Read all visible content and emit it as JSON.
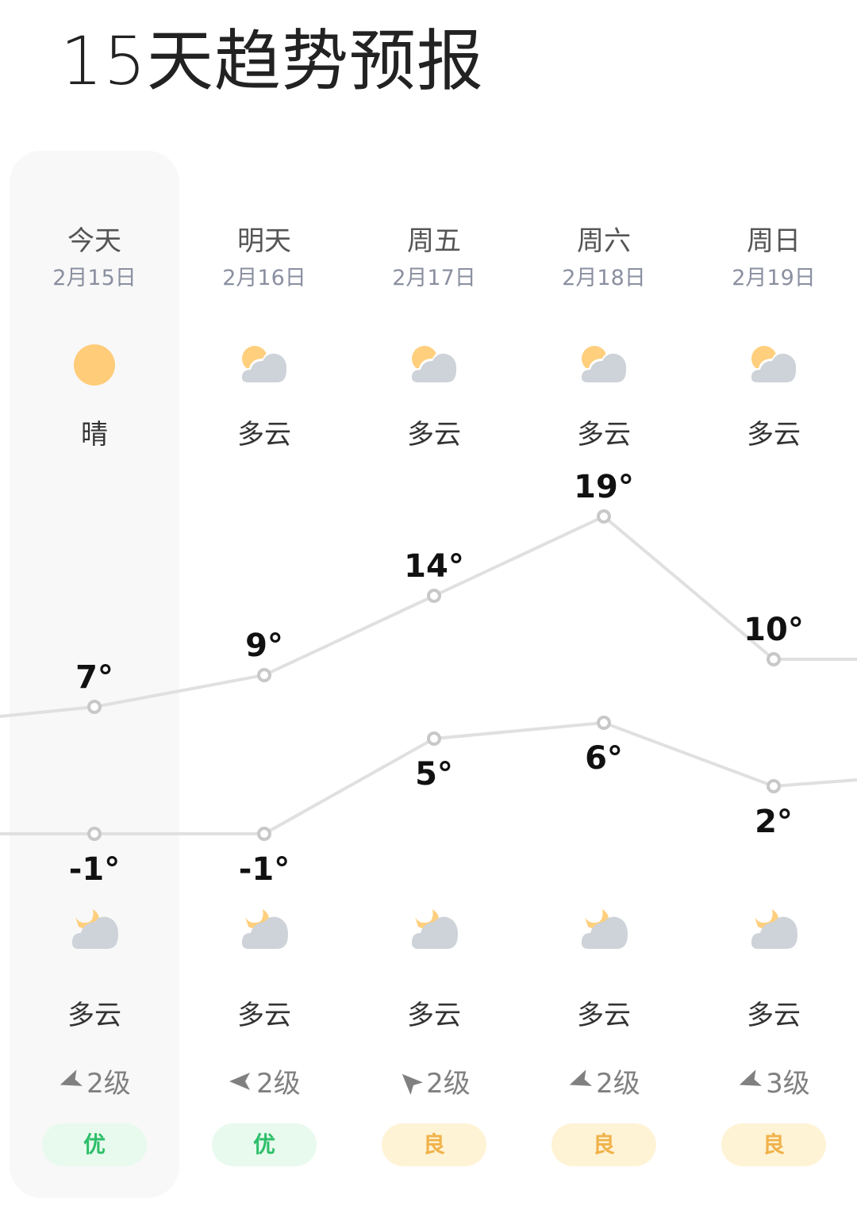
{
  "title": "15天趋势预报",
  "colors": {
    "line": "#e0e0e0",
    "point": "#c8c8c8",
    "aqi_good_bg": "#e8faee",
    "aqi_good_fg": "#2dbf6a",
    "aqi_ok_bg": "#fff3d6",
    "aqi_ok_fg": "#f0b24a",
    "today_bg": "#f8f8f8"
  },
  "days": [
    {
      "day": "今天",
      "date": "2月15日",
      "day_icon": "sun-icon",
      "day_cond": "晴",
      "high": 7,
      "high_label": "7°",
      "low": -1,
      "low_label": "-1°",
      "night_icon": "moon-cloud-icon",
      "night_cond": "多云",
      "wind": "2级",
      "wind_dir": -20,
      "aqi": "优",
      "aqi_level": "good"
    },
    {
      "day": "明天",
      "date": "2月16日",
      "day_icon": "sun-cloud-icon",
      "day_cond": "多云",
      "high": 9,
      "high_label": "9°",
      "low": -1,
      "low_label": "-1°",
      "night_icon": "moon-cloud-icon",
      "night_cond": "多云",
      "wind": "2级",
      "wind_dir": 0,
      "aqi": "优",
      "aqi_level": "good"
    },
    {
      "day": "周五",
      "date": "2月17日",
      "day_icon": "sun-cloud-icon",
      "day_cond": "多云",
      "high": 14,
      "high_label": "14°",
      "low": 5,
      "low_label": "5°",
      "night_icon": "moon-cloud-icon",
      "night_cond": "多云",
      "wind": "2级",
      "wind_dir": 45,
      "aqi": "良",
      "aqi_level": "ok"
    },
    {
      "day": "周六",
      "date": "2月18日",
      "day_icon": "sun-cloud-icon",
      "day_cond": "多云",
      "high": 19,
      "high_label": "19°",
      "low": 6,
      "low_label": "6°",
      "night_icon": "moon-cloud-icon",
      "night_cond": "多云",
      "wind": "2级",
      "wind_dir": -20,
      "aqi": "良",
      "aqi_level": "ok"
    },
    {
      "day": "周日",
      "date": "2月19日",
      "day_icon": "sun-cloud-icon",
      "day_cond": "多云",
      "high": 10,
      "high_label": "10°",
      "low": 2,
      "low_label": "2°",
      "night_icon": "moon-cloud-icon",
      "night_cond": "多云",
      "wind": "3级",
      "wind_dir": -20,
      "aqi": "良",
      "aqi_level": "ok"
    }
  ]
}
